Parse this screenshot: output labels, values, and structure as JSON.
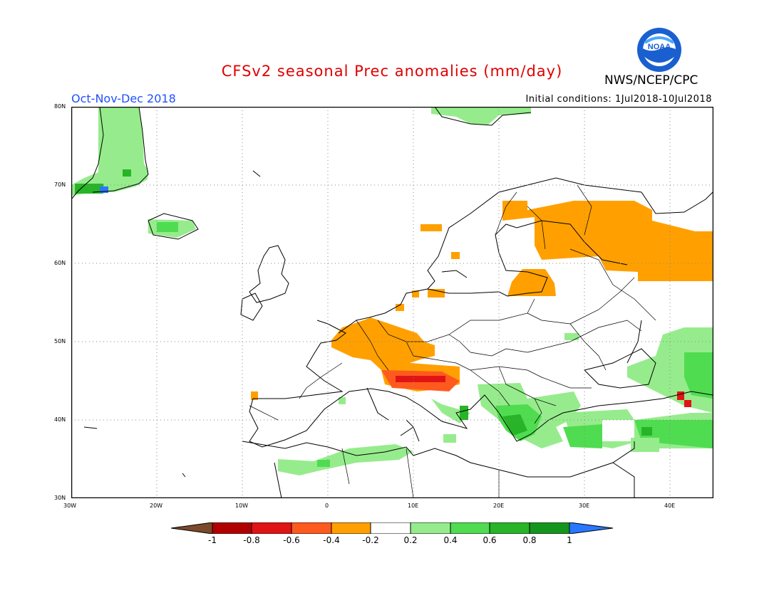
{
  "header": {
    "title": "CFSv2 seasonal Prec anomalies (mm/day)",
    "organization": "NWS/NCEP/CPC",
    "period": "Oct-Nov-Dec 2018",
    "initial_conditions": "Initial conditions: 1Jul2018-10Jul2018",
    "logo_text": "NOAA"
  },
  "map": {
    "projection": "lat-lon",
    "lon_range": [
      -30,
      45
    ],
    "lat_range": [
      30,
      80
    ],
    "lon_ticks": [
      "30W",
      "20W",
      "10W",
      "0",
      "10E",
      "20E",
      "30E",
      "40E"
    ],
    "lat_ticks": [
      "30N",
      "40N",
      "50N",
      "60N",
      "70N",
      "80N"
    ],
    "grid": "dotted"
  },
  "colorbar": {
    "labels": [
      "-1",
      "-0.8",
      "-0.6",
      "-0.4",
      "-0.2",
      "0.2",
      "0.4",
      "0.6",
      "0.8",
      "1"
    ],
    "colors": [
      "#7a4a2a",
      "#b00000",
      "#e01414",
      "#ff5a1e",
      "#ffa000",
      "#ffffff",
      "#96ec8c",
      "#50dc50",
      "#28b428",
      "#14961e",
      "#2878ff"
    ]
  },
  "chart_data": {
    "type": "heatmap",
    "title": "CFSv2 seasonal Prec anomalies (mm/day)",
    "units": "mm/day",
    "anomaly_regions": [
      {
        "region": "Greenland east coast",
        "category": "0.2 to 0.6"
      },
      {
        "region": "Greenland south-east tip",
        "category": "0.8 to 1 / >1"
      },
      {
        "region": "Iceland",
        "category": "0.2 to 0.4"
      },
      {
        "region": "Svalbard",
        "category": "0.2 to 0.4"
      },
      {
        "region": "Finland / NW Russia",
        "category": "-0.4 to -0.2"
      },
      {
        "region": "Baltic states",
        "category": "-0.4 to -0.2"
      },
      {
        "region": "France / Belgium / Germany",
        "category": "-0.4 to -0.2"
      },
      {
        "region": "Northern Italy / Alps",
        "category": "-0.6 to -0.4"
      },
      {
        "region": "Balkans / Greece",
        "category": "0.4 to 0.8"
      },
      {
        "region": "Turkey",
        "category": "0.2 to 0.6"
      },
      {
        "region": "Caucasus / Southern Russia",
        "category": "0.2 to 0.6"
      },
      {
        "region": "Georgia",
        "category": "-0.6 to -0.4"
      },
      {
        "region": "North Africa (Algeria/Tunisia)",
        "category": "0.2 to 0.4"
      }
    ]
  }
}
